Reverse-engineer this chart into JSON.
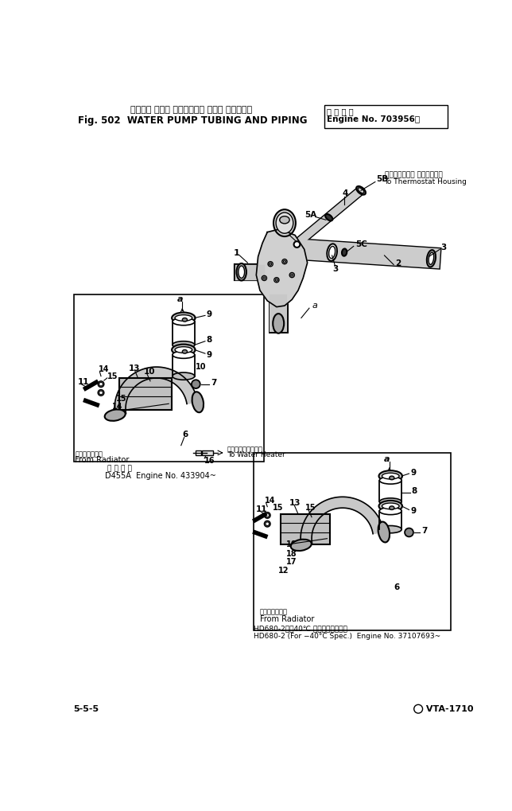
{
  "title_jp": "ウォータ ポンプ チュービング および パイピング",
  "title_en": "Fig. 502  WATER PUMP TUBING AND PIPING",
  "footer_left": "5-5-5",
  "footer_right": "① VTA-1710",
  "label_thermostat_jp": "サーモスタット ハウジングへ",
  "label_thermostat_en": "To Thermostat Housing",
  "label_water_heater_jp": "ウォータヒーターへ",
  "label_water_heater_en": "To Water Heater",
  "label_radiator_jp": "ラジエータから",
  "label_radiator_en": "From Radiator",
  "label_d455a_jp": "適用号機",
  "label_d455a_en": "D455A  Engine No. 433904~",
  "label_hd680_jp": "HD680-2（－40℃ 仕様）　適用号機",
  "label_hd680_en": "HD680-2 (For −40°C Spec.)  Engine No. 37107693~",
  "bg_color": "#ffffff"
}
